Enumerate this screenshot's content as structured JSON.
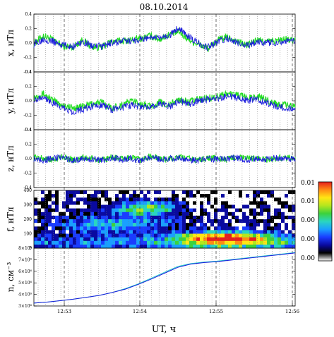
{
  "chart_data": [
    {
      "type": "line",
      "title": "08.10.2014",
      "ylabel": "x, нТл",
      "ylim": [
        -0.4,
        0.4
      ],
      "yticks": [
        "0.4",
        "0.2",
        "0.0",
        "-0.2",
        "-0.4"
      ],
      "series": [
        {
          "color": "#22dd22",
          "values": [
            0.0,
            0.1,
            0.04,
            -0.04,
            -0.06,
            0.04,
            -0.05,
            -0.06,
            0.02,
            0.03,
            0.04,
            0.06,
            0.1,
            0.05,
            0.12,
            0.15,
            0.05,
            -0.02,
            -0.08,
            0.04,
            0.08,
            0.02,
            -0.03,
            0.04,
            0.02,
            0.03,
            0.05,
            0.03
          ]
        },
        {
          "color": "#1a1adc",
          "values": [
            -0.02,
            0.06,
            0.02,
            -0.03,
            -0.05,
            0.02,
            -0.04,
            -0.05,
            0.0,
            0.02,
            0.03,
            0.05,
            0.08,
            0.06,
            0.1,
            0.22,
            0.08,
            0.0,
            -0.06,
            0.02,
            0.06,
            0.0,
            -0.04,
            0.02,
            0.0,
            0.01,
            0.03,
            0.02
          ]
        }
      ]
    },
    {
      "type": "line",
      "ylabel": "y, нТл",
      "ylim": [
        -0.4,
        0.4
      ],
      "yticks": [
        "0.4",
        "0.2",
        "0.0",
        "-0.2",
        "-0.4"
      ],
      "series": [
        {
          "color": "#22dd22",
          "values": [
            0.05,
            0.1,
            0.0,
            -0.06,
            -0.1,
            -0.08,
            -0.04,
            -0.02,
            -0.1,
            -0.06,
            0.0,
            -0.04,
            -0.08,
            -0.02,
            -0.06,
            0.02,
            -0.02,
            0.02,
            0.04,
            0.06,
            0.1,
            0.08,
            0.04,
            0.06,
            0.02,
            -0.04,
            -0.06,
            -0.08
          ]
        },
        {
          "color": "#1a1adc",
          "values": [
            0.02,
            0.06,
            -0.04,
            -0.1,
            -0.15,
            -0.12,
            -0.08,
            -0.05,
            -0.12,
            -0.1,
            -0.06,
            -0.08,
            -0.1,
            -0.04,
            -0.08,
            0.0,
            -0.05,
            0.0,
            0.02,
            0.03,
            0.06,
            0.04,
            0.0,
            0.02,
            -0.02,
            -0.08,
            -0.1,
            -0.12
          ]
        }
      ]
    },
    {
      "type": "line",
      "ylabel": "z, нТл",
      "ylim": [
        -0.4,
        0.4
      ],
      "yticks": [
        "0.4",
        "0.2",
        "0.0",
        "-0.2",
        "-0.4"
      ],
      "series": [
        {
          "color": "#22dd22",
          "values": [
            0.02,
            0.0,
            -0.02,
            0.03,
            -0.02,
            0.01,
            0.0,
            -0.03,
            0.02,
            0.0,
            0.01,
            -0.02,
            0.03,
            0.0,
            -0.01,
            0.02,
            0.0,
            -0.02,
            0.01,
            0.0,
            -0.01,
            0.02,
            0.0,
            0.01,
            -0.02,
            0.0,
            0.02,
            0.0
          ]
        },
        {
          "color": "#1a1adc",
          "values": [
            0.0,
            -0.02,
            0.01,
            0.02,
            -0.03,
            0.0,
            -0.01,
            -0.02,
            0.01,
            -0.01,
            0.0,
            -0.03,
            0.02,
            -0.01,
            0.0,
            0.01,
            -0.02,
            -0.03,
            0.0,
            -0.01,
            0.0,
            0.01,
            -0.02,
            0.0,
            -0.01,
            0.01,
            0.0,
            -0.01
          ]
        }
      ]
    },
    {
      "type": "heatmap",
      "ylabel": "f, нТл",
      "yticks": [
        "400",
        "300",
        "200",
        "100",
        "0"
      ],
      "colorbar_ticks": [
        "0.01",
        "0.01",
        "0.00",
        "0.00",
        "0.00"
      ],
      "colorscale": [
        "#ffffff",
        "#000000",
        "#0a0aa0",
        "#1a3cff",
        "#1aa0ff",
        "#2ad6c0",
        "#3cd23c",
        "#b4e61e",
        "#ffe614",
        "#ff8c14",
        "#e61e1e"
      ]
    },
    {
      "type": "line",
      "ylabel": "n, см⁻³",
      "yticks": [
        "8×10⁶",
        "7×10⁶",
        "6×10⁶",
        "5×10⁶",
        "4×10⁶",
        "3×10⁶"
      ],
      "ylim": [
        2.5,
        8.5
      ],
      "series": [
        {
          "color": "#22cccc",
          "values": [
            2.8,
            2.9,
            3.05,
            3.2,
            3.4,
            3.6,
            3.9,
            4.3,
            4.8,
            5.4,
            6.0,
            6.6,
            6.9,
            7.05,
            7.15,
            7.3,
            7.45,
            7.6,
            7.75,
            7.9,
            8.05
          ]
        },
        {
          "color": "#1a1adc",
          "values": [
            2.8,
            2.9,
            3.05,
            3.2,
            3.4,
            3.6,
            3.9,
            4.25,
            4.75,
            5.3,
            5.9,
            6.5,
            6.85,
            7.0,
            7.1,
            7.25,
            7.4,
            7.55,
            7.7,
            7.85,
            8.0
          ]
        }
      ],
      "xticks": [
        "12:53",
        "12:54",
        "12:55",
        "12:56"
      ]
    }
  ],
  "xlabel": "UT, ч"
}
